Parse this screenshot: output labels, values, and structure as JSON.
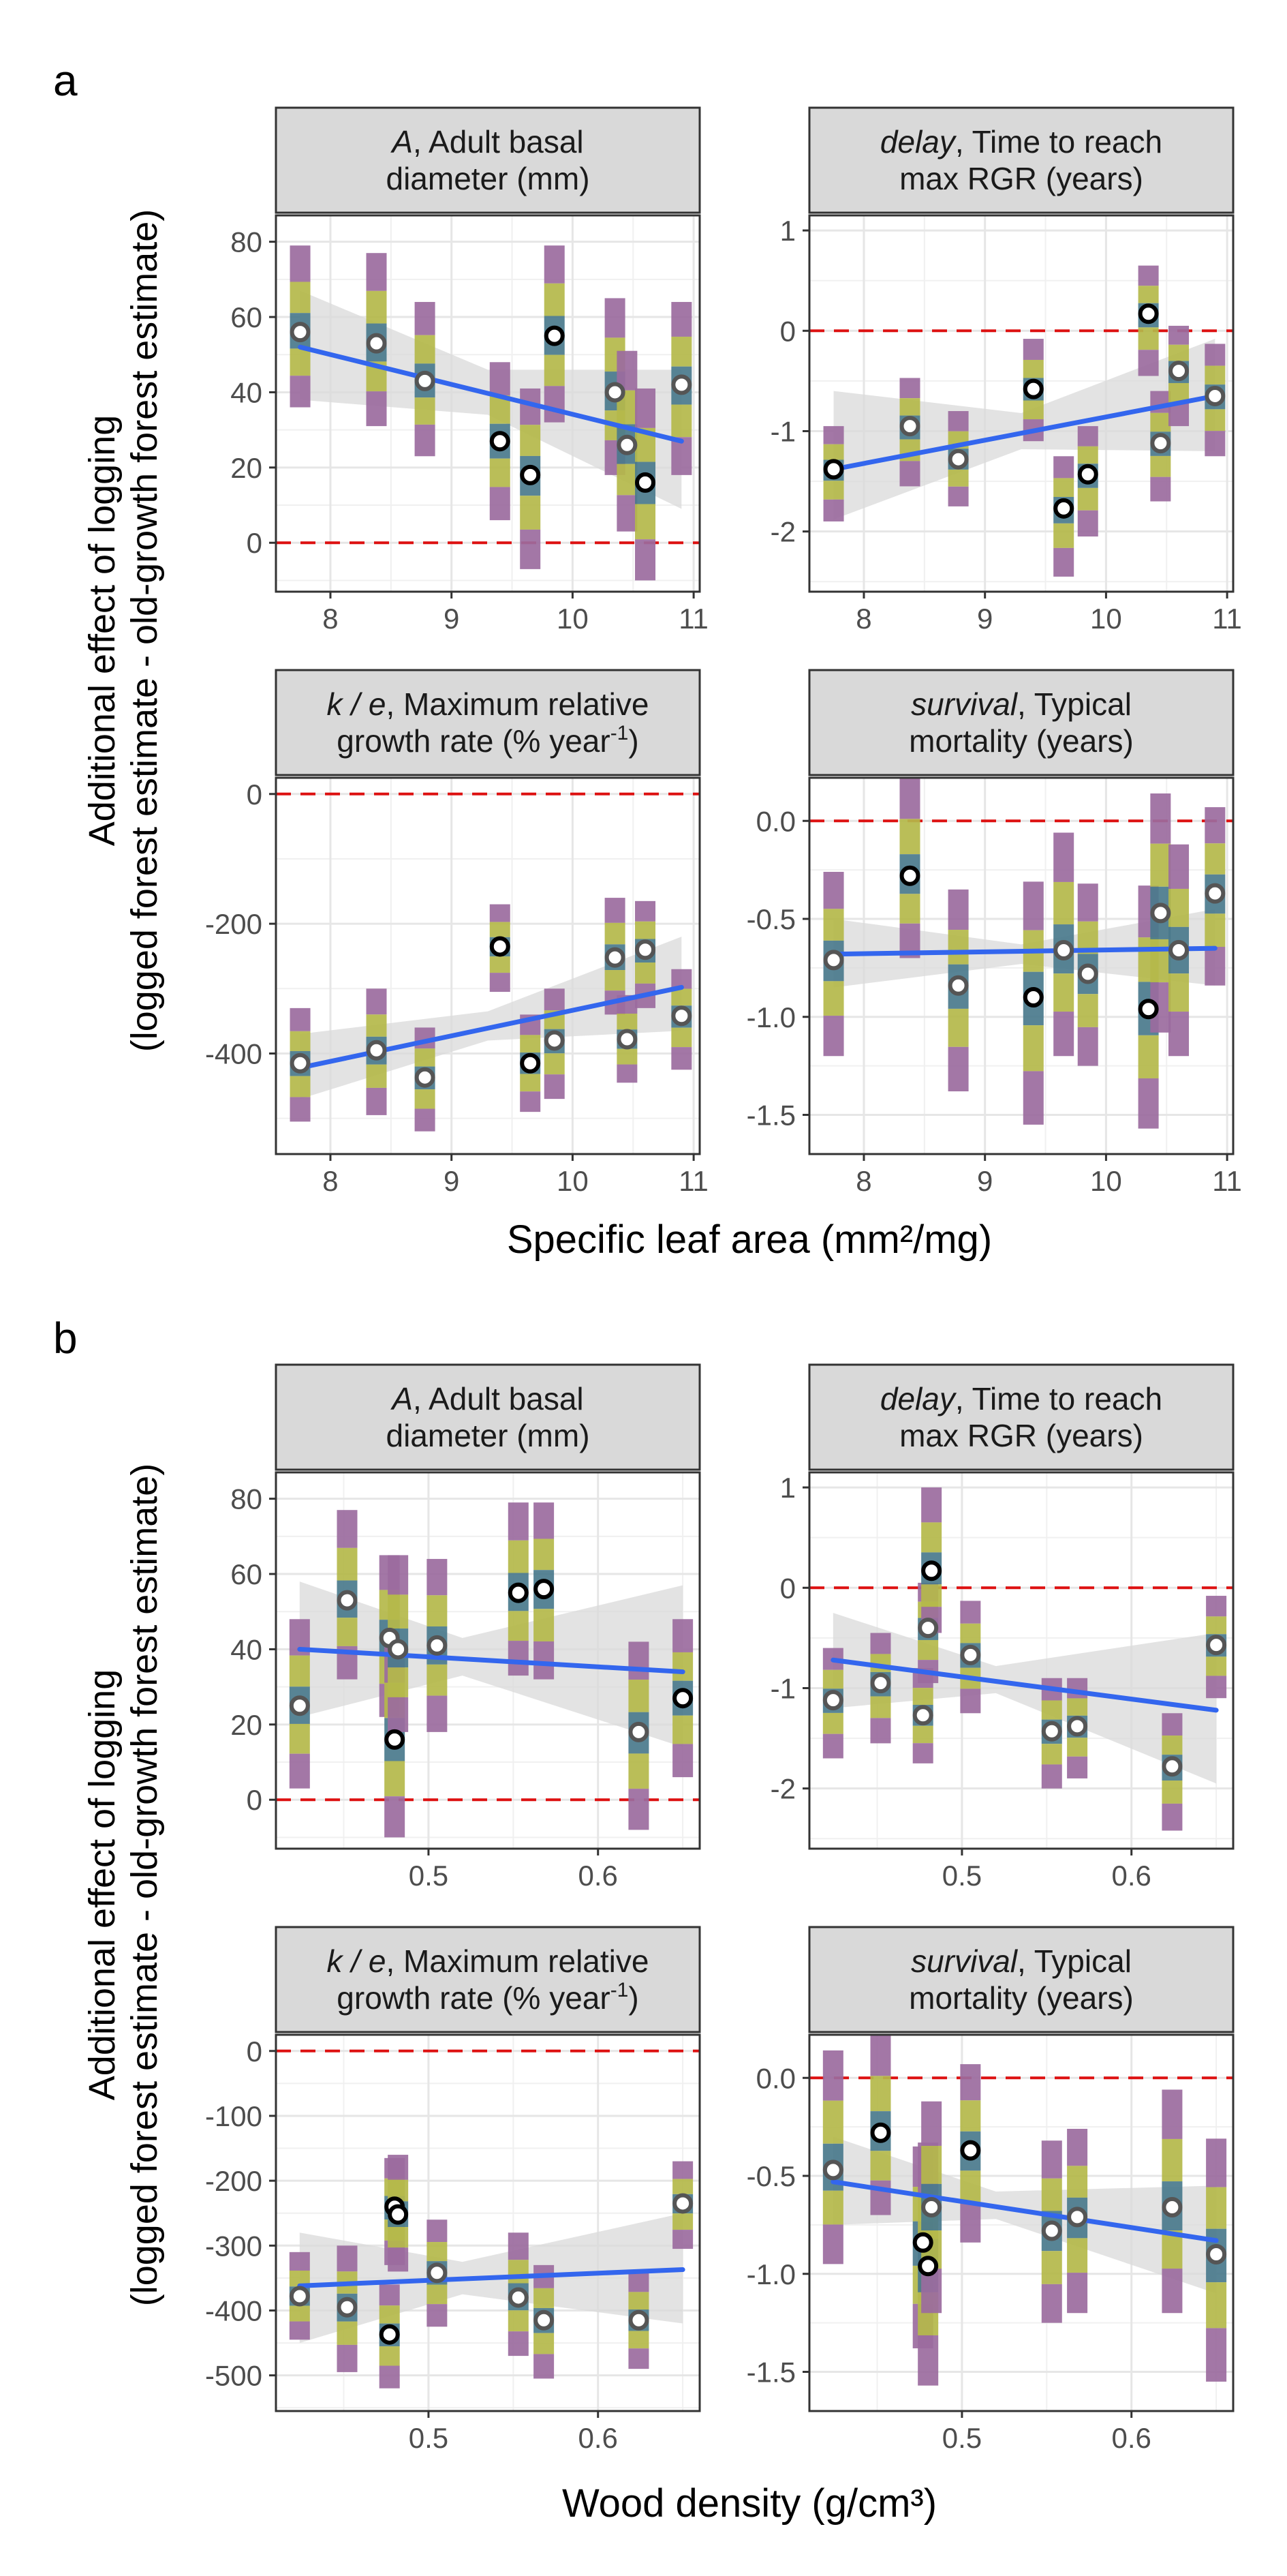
{
  "figure": {
    "panel_letters": [
      "a",
      "b"
    ],
    "y_axis_title_line1": "Additional effect of logging",
    "y_axis_title_line2": "(logged forest estimate - old-growth forest estimate)",
    "x_axis_titles": [
      "Specific leaf area (mm²/mg)",
      "Wood density (g/cm³)"
    ],
    "strip_titles": {
      "A": {
        "italic": "A",
        "rest": ", Adult basal",
        "line2": "diameter (mm)"
      },
      "delay": {
        "italic": "delay",
        "rest": ", Time to reach",
        "line2": "max RGR (years)"
      },
      "ke": {
        "italic": "k / e",
        "rest": ", Maximum relative",
        "line2": "growth rate (% year",
        "sup": "-1",
        "tail": ")"
      },
      "survival": {
        "italic": "survival",
        "rest": ", Typical",
        "line2": "mortality (years)"
      }
    },
    "colors": {
      "trend_line": "#3366ee",
      "ci_band": "#d9d9d9",
      "zero_line": "#dd1111",
      "strip_fill": "#d9d9d9",
      "band_purple": "#9b6b9e",
      "band_olive": "#b4b84a",
      "band_teal": "#4a7a8c"
    }
  },
  "chart_data": [
    {
      "type": "scatter",
      "group": "a",
      "facet": "A",
      "xlim": [
        7.55,
        11.05
      ],
      "ylim": [
        -13,
        87
      ],
      "xticks": [
        8,
        9,
        10,
        11
      ],
      "yticks": [
        0,
        20,
        40,
        60,
        80
      ],
      "reference_line": 0,
      "points": [
        {
          "x": 7.75,
          "y": 56,
          "lo": 36,
          "hi": 79
        },
        {
          "x": 8.38,
          "y": 53,
          "lo": 31,
          "hi": 77
        },
        {
          "x": 8.78,
          "y": 43,
          "lo": 23,
          "hi": 64
        },
        {
          "x": 9.4,
          "y": 27,
          "lo": 6,
          "hi": 48
        },
        {
          "x": 9.65,
          "y": 18,
          "lo": -7,
          "hi": 41
        },
        {
          "x": 9.85,
          "y": 55,
          "lo": 32,
          "hi": 79
        },
        {
          "x": 10.35,
          "y": 40,
          "lo": 18,
          "hi": 65
        },
        {
          "x": 10.45,
          "y": 26,
          "lo": 3,
          "hi": 51
        },
        {
          "x": 10.6,
          "y": 16,
          "lo": -10,
          "hi": 41
        },
        {
          "x": 10.9,
          "y": 42,
          "lo": 18,
          "hi": 64
        }
      ],
      "trend": {
        "x0": 7.75,
        "y0": 52,
        "x1": 10.9,
        "y1": 27
      },
      "ci": [
        [
          7.75,
          38,
          67
        ],
        [
          9.3,
          34,
          46
        ],
        [
          10.9,
          9,
          46
        ]
      ],
      "filled_points": [
        false,
        false,
        false,
        true,
        true,
        true,
        false,
        false,
        true,
        false
      ]
    },
    {
      "type": "scatter",
      "group": "a",
      "facet": "delay",
      "xlim": [
        7.55,
        11.05
      ],
      "ylim": [
        -2.6,
        1.15
      ],
      "xticks": [
        8,
        9,
        10,
        11
      ],
      "yticks": [
        -2,
        -1,
        0,
        1
      ],
      "reference_line": 0,
      "points": [
        {
          "x": 7.75,
          "y": -1.38,
          "lo": -1.9,
          "hi": -0.95
        },
        {
          "x": 8.38,
          "y": -0.95,
          "lo": -1.55,
          "hi": -0.47
        },
        {
          "x": 8.78,
          "y": -1.28,
          "lo": -1.75,
          "hi": -0.8
        },
        {
          "x": 9.4,
          "y": -0.58,
          "lo": -1.1,
          "hi": -0.08
        },
        {
          "x": 9.65,
          "y": -1.77,
          "lo": -2.45,
          "hi": -1.25
        },
        {
          "x": 9.85,
          "y": -1.43,
          "lo": -2.05,
          "hi": -0.95
        },
        {
          "x": 10.35,
          "y": 0.17,
          "lo": -0.45,
          "hi": 0.65
        },
        {
          "x": 10.45,
          "y": -1.12,
          "lo": -1.7,
          "hi": -0.6
        },
        {
          "x": 10.6,
          "y": -0.4,
          "lo": -0.95,
          "hi": 0.05
        },
        {
          "x": 10.9,
          "y": -0.65,
          "lo": -1.25,
          "hi": -0.13
        }
      ],
      "trend": {
        "x0": 7.75,
        "y0": -1.38,
        "x1": 10.9,
        "y1": -0.65
      },
      "ci": [
        [
          7.75,
          -1.88,
          -0.6
        ],
        [
          9.3,
          -1.18,
          -0.82
        ],
        [
          10.9,
          -1.2,
          -0.08
        ]
      ],
      "filled_points": [
        true,
        false,
        false,
        true,
        true,
        true,
        true,
        false,
        false,
        false
      ]
    },
    {
      "type": "scatter",
      "group": "a",
      "facet": "ke",
      "xlim": [
        7.55,
        11.05
      ],
      "ylim": [
        -555,
        25
      ],
      "xticks": [
        8,
        9,
        10,
        11
      ],
      "yticks": [
        0,
        -200,
        -400
      ],
      "reference_line": 0,
      "points": [
        {
          "x": 7.75,
          "y": -415,
          "lo": -505,
          "hi": -330
        },
        {
          "x": 8.38,
          "y": -395,
          "lo": -495,
          "hi": -300
        },
        {
          "x": 8.78,
          "y": -437,
          "lo": -520,
          "hi": -360
        },
        {
          "x": 9.4,
          "y": -235,
          "lo": -305,
          "hi": -170
        },
        {
          "x": 9.65,
          "y": -415,
          "lo": -490,
          "hi": -340
        },
        {
          "x": 9.85,
          "y": -380,
          "lo": -470,
          "hi": -300
        },
        {
          "x": 10.35,
          "y": -252,
          "lo": -340,
          "hi": -160
        },
        {
          "x": 10.45,
          "y": -378,
          "lo": -445,
          "hi": -310
        },
        {
          "x": 10.6,
          "y": -240,
          "lo": -330,
          "hi": -165
        },
        {
          "x": 10.9,
          "y": -342,
          "lo": -425,
          "hi": -270
        }
      ],
      "trend": {
        "x0": 7.75,
        "y0": -422,
        "x1": 10.9,
        "y1": -298
      },
      "ci": [
        [
          7.75,
          -470,
          -370
        ],
        [
          9.3,
          -380,
          -335
        ],
        [
          10.9,
          -365,
          -220
        ]
      ],
      "filled_points": [
        false,
        false,
        false,
        true,
        true,
        false,
        false,
        false,
        false,
        false
      ]
    },
    {
      "type": "scatter",
      "group": "a",
      "facet": "survival",
      "xlim": [
        7.55,
        11.05
      ],
      "ylim": [
        -1.7,
        0.22
      ],
      "xticks": [
        8,
        9,
        10,
        11
      ],
      "yticks": [
        0.0,
        -0.5,
        -1.0,
        -1.5
      ],
      "reference_line": 0,
      "points": [
        {
          "x": 7.75,
          "y": -0.71,
          "lo": -1.2,
          "hi": -0.26
        },
        {
          "x": 8.38,
          "y": -0.28,
          "lo": -0.7,
          "hi": 0.22
        },
        {
          "x": 8.78,
          "y": -0.84,
          "lo": -1.38,
          "hi": -0.35
        },
        {
          "x": 9.4,
          "y": -0.9,
          "lo": -1.55,
          "hi": -0.31
        },
        {
          "x": 9.65,
          "y": -0.66,
          "lo": -1.2,
          "hi": -0.06
        },
        {
          "x": 9.85,
          "y": -0.78,
          "lo": -1.25,
          "hi": -0.32
        },
        {
          "x": 10.35,
          "y": -0.96,
          "lo": -1.57,
          "hi": -0.33
        },
        {
          "x": 10.45,
          "y": -0.47,
          "lo": -1.08,
          "hi": 0.14
        },
        {
          "x": 10.6,
          "y": -0.66,
          "lo": -1.2,
          "hi": -0.12
        },
        {
          "x": 10.9,
          "y": -0.37,
          "lo": -0.84,
          "hi": 0.07
        }
      ],
      "trend": {
        "x0": 7.75,
        "y0": -0.68,
        "x1": 10.9,
        "y1": -0.65
      },
      "ci": [
        [
          7.75,
          -0.85,
          -0.5
        ],
        [
          9.3,
          -0.73,
          -0.63
        ],
        [
          10.9,
          -0.84,
          -0.45
        ]
      ],
      "filled_points": [
        false,
        true,
        false,
        true,
        false,
        false,
        true,
        false,
        false,
        false
      ]
    },
    {
      "type": "scatter",
      "group": "b",
      "facet": "A",
      "xlim": [
        0.41,
        0.66
      ],
      "ylim": [
        -13,
        87
      ],
      "xticks": [
        0.5,
        0.6
      ],
      "yticks": [
        0,
        20,
        40,
        60,
        80
      ],
      "reference_line": 0,
      "points": [
        {
          "x": 0.424,
          "y": 25,
          "lo": 3,
          "hi": 48
        },
        {
          "x": 0.452,
          "y": 53,
          "lo": 32,
          "hi": 77
        },
        {
          "x": 0.477,
          "y": 43,
          "lo": 22,
          "hi": 65
        },
        {
          "x": 0.48,
          "y": 16,
          "lo": -10,
          "hi": 42
        },
        {
          "x": 0.482,
          "y": 40,
          "lo": 18,
          "hi": 65
        },
        {
          "x": 0.505,
          "y": 41,
          "lo": 18,
          "hi": 64
        },
        {
          "x": 0.553,
          "y": 55,
          "lo": 33,
          "hi": 79
        },
        {
          "x": 0.568,
          "y": 56,
          "lo": 32,
          "hi": 79
        },
        {
          "x": 0.624,
          "y": 18,
          "lo": -8,
          "hi": 42
        },
        {
          "x": 0.65,
          "y": 27,
          "lo": 6,
          "hi": 48
        }
      ],
      "trend": {
        "x0": 0.424,
        "y0": 40,
        "x1": 0.65,
        "y1": 34
      },
      "ci": [
        [
          0.424,
          22,
          58
        ],
        [
          0.52,
          33,
          43
        ],
        [
          0.65,
          14,
          57
        ]
      ],
      "filled_points": [
        false,
        false,
        false,
        true,
        false,
        false,
        true,
        true,
        false,
        true
      ]
    },
    {
      "type": "scatter",
      "group": "b",
      "facet": "delay",
      "xlim": [
        0.41,
        0.66
      ],
      "ylim": [
        -2.6,
        1.15
      ],
      "xticks": [
        0.5,
        0.6
      ],
      "yticks": [
        -2,
        -1,
        0,
        1
      ],
      "reference_line": 0,
      "points": [
        {
          "x": 0.424,
          "y": -1.12,
          "lo": -1.7,
          "hi": -0.6
        },
        {
          "x": 0.452,
          "y": -0.95,
          "lo": -1.55,
          "hi": -0.45
        },
        {
          "x": 0.477,
          "y": -1.27,
          "lo": -1.75,
          "hi": -0.8
        },
        {
          "x": 0.48,
          "y": -0.4,
          "lo": -0.95,
          "hi": 0.05
        },
        {
          "x": 0.482,
          "y": 0.17,
          "lo": -0.45,
          "hi": 1.0
        },
        {
          "x": 0.505,
          "y": -0.67,
          "lo": -1.25,
          "hi": -0.13
        },
        {
          "x": 0.553,
          "y": -1.43,
          "lo": -2.0,
          "hi": -0.9
        },
        {
          "x": 0.568,
          "y": -1.38,
          "lo": -1.9,
          "hi": -0.9
        },
        {
          "x": 0.624,
          "y": -1.78,
          "lo": -2.42,
          "hi": -1.25
        },
        {
          "x": 0.65,
          "y": -0.57,
          "lo": -1.1,
          "hi": -0.08
        }
      ],
      "trend": {
        "x0": 0.424,
        "y0": -0.72,
        "x1": 0.65,
        "y1": -1.22
      },
      "ci": [
        [
          0.424,
          -1.2,
          -0.25
        ],
        [
          0.52,
          -1.05,
          -0.78
        ],
        [
          0.65,
          -1.95,
          -0.45
        ]
      ],
      "filled_points": [
        false,
        false,
        false,
        false,
        true,
        false,
        false,
        false,
        false,
        false
      ]
    },
    {
      "type": "scatter",
      "group": "b",
      "facet": "ke",
      "xlim": [
        0.41,
        0.66
      ],
      "ylim": [
        -555,
        25
      ],
      "xticks": [
        0.5,
        0.6
      ],
      "yticks": [
        0,
        -100,
        -200,
        -300,
        -400,
        -500
      ],
      "reference_line": 0,
      "points": [
        {
          "x": 0.424,
          "y": -378,
          "lo": -445,
          "hi": -310
        },
        {
          "x": 0.452,
          "y": -395,
          "lo": -495,
          "hi": -300
        },
        {
          "x": 0.477,
          "y": -437,
          "lo": -520,
          "hi": -360
        },
        {
          "x": 0.48,
          "y": -240,
          "lo": -330,
          "hi": -165
        },
        {
          "x": 0.482,
          "y": -252,
          "lo": -340,
          "hi": -160
        },
        {
          "x": 0.505,
          "y": -342,
          "lo": -425,
          "hi": -260
        },
        {
          "x": 0.553,
          "y": -380,
          "lo": -470,
          "hi": -280
        },
        {
          "x": 0.568,
          "y": -415,
          "lo": -505,
          "hi": -330
        },
        {
          "x": 0.624,
          "y": -415,
          "lo": -490,
          "hi": -340
        },
        {
          "x": 0.65,
          "y": -235,
          "lo": -305,
          "hi": -170
        }
      ],
      "trend": {
        "x0": 0.424,
        "y0": -362,
        "x1": 0.65,
        "y1": -337
      },
      "ci": [
        [
          0.424,
          -450,
          -280
        ],
        [
          0.52,
          -375,
          -325
        ],
        [
          0.65,
          -420,
          -250
        ]
      ],
      "filled_points": [
        false,
        false,
        true,
        true,
        true,
        false,
        false,
        false,
        false,
        false
      ]
    },
    {
      "type": "scatter",
      "group": "b",
      "facet": "survival",
      "xlim": [
        0.41,
        0.66
      ],
      "ylim": [
        -1.7,
        0.22
      ],
      "xticks": [
        0.5,
        0.6
      ],
      "yticks": [
        0.0,
        -0.5,
        -1.0,
        -1.5
      ],
      "reference_line": 0,
      "points": [
        {
          "x": 0.424,
          "y": -0.47,
          "lo": -0.95,
          "hi": 0.14
        },
        {
          "x": 0.452,
          "y": -0.28,
          "lo": -0.7,
          "hi": 0.22
        },
        {
          "x": 0.477,
          "y": -0.84,
          "lo": -1.38,
          "hi": -0.35
        },
        {
          "x": 0.48,
          "y": -0.96,
          "lo": -1.57,
          "hi": -0.33
        },
        {
          "x": 0.482,
          "y": -0.66,
          "lo": -1.2,
          "hi": -0.12
        },
        {
          "x": 0.505,
          "y": -0.37,
          "lo": -0.84,
          "hi": 0.07
        },
        {
          "x": 0.553,
          "y": -0.78,
          "lo": -1.25,
          "hi": -0.32
        },
        {
          "x": 0.568,
          "y": -0.71,
          "lo": -1.2,
          "hi": -0.26
        },
        {
          "x": 0.624,
          "y": -0.66,
          "lo": -1.2,
          "hi": -0.06
        },
        {
          "x": 0.65,
          "y": -0.9,
          "lo": -1.55,
          "hi": -0.31
        }
      ],
      "trend": {
        "x0": 0.424,
        "y0": -0.53,
        "x1": 0.65,
        "y1": -0.83
      },
      "ci": [
        [
          0.424,
          -0.75,
          -0.3
        ],
        [
          0.52,
          -0.72,
          -0.58
        ],
        [
          0.65,
          -1.1,
          -0.55
        ]
      ],
      "filled_points": [
        false,
        true,
        true,
        true,
        false,
        true,
        false,
        false,
        false,
        false
      ]
    }
  ]
}
